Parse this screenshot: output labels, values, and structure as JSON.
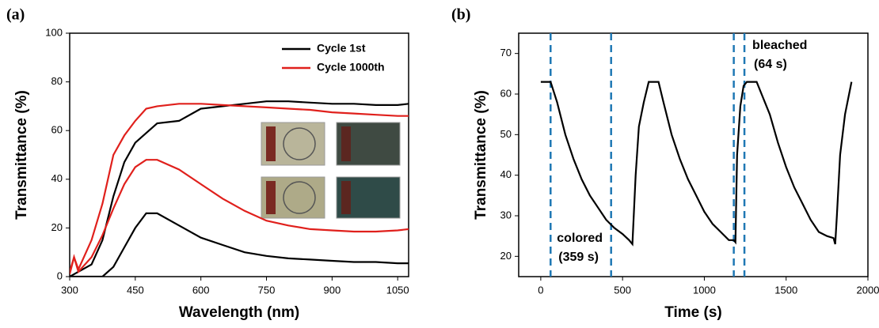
{
  "chart_data": [
    {
      "type": "line",
      "panel_label": "(a)",
      "xlabel": "Wavelength (nm)",
      "ylabel": "Transmittance (%)",
      "xlim": [
        300,
        1075
      ],
      "ylim": [
        0,
        100
      ],
      "xticks": [
        300,
        450,
        600,
        750,
        900,
        1050
      ],
      "yticks": [
        0,
        20,
        40,
        60,
        80,
        100
      ],
      "legend": "upper right",
      "x": [
        300,
        310,
        320,
        350,
        375,
        400,
        425,
        450,
        475,
        500,
        550,
        600,
        650,
        700,
        750,
        800,
        850,
        900,
        950,
        1000,
        1050,
        1075
      ],
      "series": [
        {
          "name": "Cycle 1st",
          "color": "#000000",
          "values": [
            0,
            1,
            2,
            5,
            15,
            33,
            47,
            55,
            59,
            63,
            64,
            69,
            70,
            71,
            72,
            72,
            71.5,
            71,
            71,
            70.5,
            70.5,
            71
          ],
          "values_2": [
            0,
            0,
            0,
            0,
            0,
            4,
            12,
            20,
            26,
            26,
            21,
            16,
            13,
            10,
            8.5,
            7.5,
            7,
            6.5,
            6,
            6,
            5.5,
            5.5
          ]
        },
        {
          "name": "Cycle 1000th",
          "color": "#e0201c",
          "values": [
            2,
            8,
            3,
            15,
            30,
            50,
            58,
            64,
            69,
            70,
            71,
            71,
            70.5,
            70,
            69.5,
            69,
            68.5,
            67.5,
            67,
            66.5,
            66,
            66
          ],
          "values_2": [
            1,
            8,
            2,
            8,
            17,
            28,
            38,
            45,
            48,
            48,
            44,
            38,
            32,
            27,
            23,
            21,
            19.5,
            19,
            18.5,
            18.5,
            19,
            19.5
          ]
        }
      ]
    },
    {
      "type": "line",
      "panel_label": "(b)",
      "xlabel": "Time (s)",
      "ylabel": "Transmittance (%)",
      "xlim": [
        -135,
        2000
      ],
      "ylim": [
        15,
        75
      ],
      "xticks": [
        0,
        500,
        1000,
        1500,
        2000
      ],
      "yticks": [
        20,
        30,
        40,
        50,
        60,
        70
      ],
      "x": [
        0,
        60,
        100,
        150,
        200,
        250,
        300,
        350,
        400,
        450,
        500,
        540,
        560,
        580,
        600,
        630,
        660,
        700,
        720,
        750,
        800,
        850,
        900,
        950,
        1000,
        1050,
        1100,
        1150,
        1180,
        1190,
        1200,
        1220,
        1240,
        1260,
        1300,
        1320,
        1350,
        1400,
        1450,
        1500,
        1550,
        1600,
        1650,
        1700,
        1750,
        1790,
        1800,
        1810,
        1830,
        1860,
        1900
      ],
      "series": [
        {
          "color": "#000000",
          "values": [
            63,
            63,
            58,
            50,
            44,
            39,
            35,
            32,
            29,
            27,
            25.5,
            24,
            23,
            40,
            52,
            58,
            63,
            63,
            63,
            58,
            50,
            44,
            39,
            35,
            31,
            28,
            26,
            24,
            24,
            23.5,
            45,
            57,
            62,
            63,
            63,
            63,
            60,
            55,
            48,
            42,
            37,
            33,
            29,
            26,
            25,
            24.5,
            23,
            30,
            45,
            55,
            63
          ]
        }
      ],
      "vlines": [
        60,
        430,
        1180,
        1245
      ],
      "vline_color": "#1f78b4",
      "annotations": [
        {
          "lines": [
            "colored",
            "(359 s)"
          ]
        },
        {
          "lines": [
            "bleached",
            "(64 s)"
          ]
        }
      ]
    }
  ]
}
